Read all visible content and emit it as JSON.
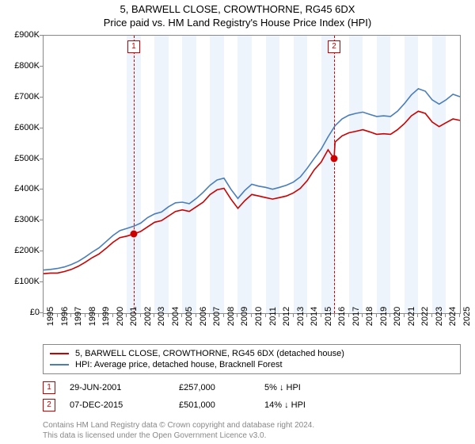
{
  "title_line1": "5, BARWELL CLOSE, CROWTHORNE, RG45 6DX",
  "title_line2": "Price paid vs. HM Land Registry's House Price Index (HPI)",
  "chart": {
    "type": "line",
    "x_axis": {
      "min": 1995,
      "max": 2025,
      "ticks": [
        1995,
        1996,
        1997,
        1998,
        1999,
        2000,
        2001,
        2002,
        2003,
        2004,
        2005,
        2006,
        2007,
        2008,
        2009,
        2010,
        2011,
        2012,
        2013,
        2014,
        2015,
        2016,
        2017,
        2018,
        2019,
        2020,
        2021,
        2022,
        2023,
        2024,
        2025
      ]
    },
    "y_axis": {
      "min": 0,
      "max": 900000,
      "ticks": [
        0,
        100000,
        200000,
        300000,
        400000,
        500000,
        600000,
        700000,
        800000,
        900000
      ],
      "labels": [
        "£0",
        "£100K",
        "£200K",
        "£300K",
        "£400K",
        "£500K",
        "£600K",
        "£700K",
        "£800K",
        "£900K"
      ]
    },
    "bands_start": 2001,
    "background_color": "#ffffff",
    "band_color": "#eef4fb",
    "border_color": "#888888",
    "series": [
      {
        "name": "5, BARWELL CLOSE, CROWTHORNE, RG45 6DX (detached house)",
        "color": "#cc0000",
        "line_width": 1.6,
        "points": [
          [
            1995,
            128000
          ],
          [
            1995.5,
            130000
          ],
          [
            1996,
            130000
          ],
          [
            1996.5,
            135000
          ],
          [
            1997,
            142000
          ],
          [
            1997.5,
            152000
          ],
          [
            1998,
            165000
          ],
          [
            1998.5,
            180000
          ],
          [
            1999,
            192000
          ],
          [
            1999.5,
            210000
          ],
          [
            2000,
            230000
          ],
          [
            2000.5,
            245000
          ],
          [
            2001,
            250000
          ],
          [
            2001.5,
            257000
          ],
          [
            2002,
            265000
          ],
          [
            2002.5,
            280000
          ],
          [
            2003,
            295000
          ],
          [
            2003.5,
            300000
          ],
          [
            2004,
            315000
          ],
          [
            2004.5,
            330000
          ],
          [
            2005,
            335000
          ],
          [
            2005.5,
            330000
          ],
          [
            2006,
            345000
          ],
          [
            2006.5,
            360000
          ],
          [
            2007,
            385000
          ],
          [
            2007.5,
            400000
          ],
          [
            2008,
            405000
          ],
          [
            2008.5,
            370000
          ],
          [
            2009,
            340000
          ],
          [
            2009.5,
            365000
          ],
          [
            2010,
            385000
          ],
          [
            2010.5,
            380000
          ],
          [
            2011,
            375000
          ],
          [
            2011.5,
            370000
          ],
          [
            2012,
            375000
          ],
          [
            2012.5,
            380000
          ],
          [
            2013,
            390000
          ],
          [
            2013.5,
            405000
          ],
          [
            2014,
            430000
          ],
          [
            2014.5,
            465000
          ],
          [
            2015,
            490000
          ],
          [
            2015.5,
            530000
          ],
          [
            2015.93,
            501000
          ],
          [
            2016,
            555000
          ],
          [
            2016.5,
            575000
          ],
          [
            2017,
            585000
          ],
          [
            2017.5,
            590000
          ],
          [
            2018,
            595000
          ],
          [
            2018.5,
            588000
          ],
          [
            2019,
            580000
          ],
          [
            2019.5,
            582000
          ],
          [
            2020,
            580000
          ],
          [
            2020.5,
            595000
          ],
          [
            2021,
            615000
          ],
          [
            2021.5,
            640000
          ],
          [
            2022,
            655000
          ],
          [
            2022.5,
            648000
          ],
          [
            2023,
            620000
          ],
          [
            2023.5,
            605000
          ],
          [
            2024,
            618000
          ],
          [
            2024.5,
            630000
          ],
          [
            2025,
            625000
          ]
        ]
      },
      {
        "name": "HPI: Average price, detached house, Bracknell Forest",
        "color": "#4a7ebb",
        "line_width": 1.6,
        "points": [
          [
            1995,
            140000
          ],
          [
            1995.5,
            142000
          ],
          [
            1996,
            145000
          ],
          [
            1996.5,
            150000
          ],
          [
            1997,
            158000
          ],
          [
            1997.5,
            168000
          ],
          [
            1998,
            182000
          ],
          [
            1998.5,
            198000
          ],
          [
            1999,
            212000
          ],
          [
            1999.5,
            232000
          ],
          [
            2000,
            252000
          ],
          [
            2000.5,
            268000
          ],
          [
            2001,
            275000
          ],
          [
            2001.5,
            282000
          ],
          [
            2002,
            292000
          ],
          [
            2002.5,
            310000
          ],
          [
            2003,
            322000
          ],
          [
            2003.5,
            328000
          ],
          [
            2004,
            345000
          ],
          [
            2004.5,
            358000
          ],
          [
            2005,
            360000
          ],
          [
            2005.5,
            355000
          ],
          [
            2006,
            372000
          ],
          [
            2006.5,
            392000
          ],
          [
            2007,
            415000
          ],
          [
            2007.5,
            432000
          ],
          [
            2008,
            438000
          ],
          [
            2008.5,
            402000
          ],
          [
            2009,
            372000
          ],
          [
            2009.5,
            398000
          ],
          [
            2010,
            418000
          ],
          [
            2010.5,
            412000
          ],
          [
            2011,
            408000
          ],
          [
            2011.5,
            402000
          ],
          [
            2012,
            408000
          ],
          [
            2012.5,
            415000
          ],
          [
            2013,
            425000
          ],
          [
            2013.5,
            442000
          ],
          [
            2014,
            470000
          ],
          [
            2014.5,
            502000
          ],
          [
            2015,
            532000
          ],
          [
            2015.5,
            572000
          ],
          [
            2016,
            608000
          ],
          [
            2016.5,
            630000
          ],
          [
            2017,
            642000
          ],
          [
            2017.5,
            648000
          ],
          [
            2018,
            652000
          ],
          [
            2018.5,
            645000
          ],
          [
            2019,
            638000
          ],
          [
            2019.5,
            640000
          ],
          [
            2020,
            638000
          ],
          [
            2020.5,
            655000
          ],
          [
            2021,
            680000
          ],
          [
            2021.5,
            708000
          ],
          [
            2022,
            728000
          ],
          [
            2022.5,
            720000
          ],
          [
            2023,
            692000
          ],
          [
            2023.5,
            678000
          ],
          [
            2024,
            692000
          ],
          [
            2024.5,
            710000
          ],
          [
            2025,
            702000
          ]
        ]
      }
    ],
    "guides": [
      {
        "x": 2001.5,
        "label": "1",
        "marker_at_y": 257000
      },
      {
        "x": 2015.93,
        "label": "2",
        "marker_at_y": 501000
      }
    ]
  },
  "legend": {
    "series0": "5, BARWELL CLOSE, CROWTHORNE, RG45 6DX (detached house)",
    "series1": "HPI: Average price, detached house, Bracknell Forest"
  },
  "sales": [
    {
      "label": "1",
      "date": "29-JUN-2001",
      "price": "£257,000",
      "delta": "5%  ↓  HPI"
    },
    {
      "label": "2",
      "date": "07-DEC-2015",
      "price": "£501,000",
      "delta": "14%  ↓  HPI"
    }
  ],
  "footer_line1": "Contains HM Land Registry data © Crown copyright and database right 2024.",
  "footer_line2": "This data is licensed under the Open Government Licence v3.0."
}
